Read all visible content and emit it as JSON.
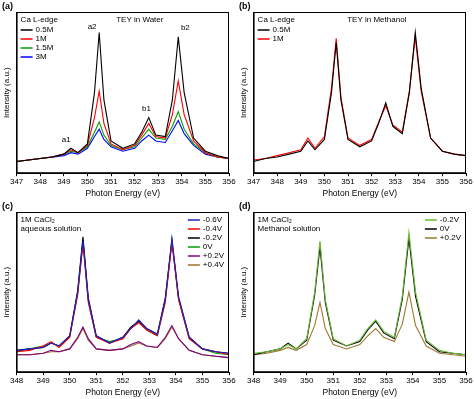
{
  "chart_data": [
    {
      "type": "line",
      "panel": "(a)",
      "title": "TEY in Water",
      "subtitle": "Ca L-edge",
      "x_label": "Photon Energy (eV)",
      "y_label": "Intensity (a.u.)",
      "x": [
        347,
        347.5,
        348,
        348.5,
        349,
        349.3,
        349.6,
        350,
        350.3,
        350.5,
        350.7,
        351,
        351.5,
        352,
        352.3,
        352.6,
        352.9,
        353.3,
        353.6,
        353.85,
        354.1,
        354.5,
        355,
        355.5,
        356
      ],
      "series": [
        {
          "name": "0.5M",
          "color": "#000000",
          "values": [
            0.8,
            0.9,
            1.0,
            1.1,
            1.3,
            1.7,
            1.4,
            2.0,
            5.5,
            9.6,
            5.0,
            2.2,
            1.7,
            2.0,
            2.8,
            3.8,
            2.6,
            2.5,
            5.0,
            9.3,
            5.5,
            2.4,
            1.5,
            1.2,
            1.0
          ]
        },
        {
          "name": "1M",
          "color": "#ff0000",
          "values": [
            0.8,
            0.9,
            1.0,
            1.1,
            1.3,
            1.6,
            1.4,
            1.9,
            3.8,
            5.6,
            3.4,
            2.0,
            1.6,
            1.9,
            2.6,
            3.4,
            2.5,
            2.4,
            4.0,
            6.3,
            4.0,
            2.2,
            1.4,
            1.1,
            1.0
          ]
        },
        {
          "name": "1.5M",
          "color": "#00a000",
          "values": [
            0.8,
            0.9,
            1.0,
            1.1,
            1.3,
            1.5,
            1.4,
            1.8,
            2.8,
            3.5,
            2.6,
            1.9,
            1.6,
            1.8,
            2.4,
            3.0,
            2.4,
            2.3,
            3.2,
            4.2,
            3.0,
            2.0,
            1.4,
            1.1,
            1.0
          ]
        },
        {
          "name": "3M",
          "color": "#0000ff",
          "values": [
            0.8,
            0.9,
            1.0,
            1.1,
            1.2,
            1.4,
            1.3,
            1.7,
            2.5,
            3.0,
            2.3,
            1.8,
            1.5,
            1.7,
            2.2,
            2.6,
            2.2,
            2.1,
            2.9,
            3.6,
            2.7,
            1.9,
            1.3,
            1.1,
            1.0
          ]
        }
      ],
      "xlim": [
        347,
        356
      ],
      "xticks": [
        347,
        348,
        349,
        350,
        351,
        352,
        353,
        354,
        355,
        356
      ],
      "ylim": [
        0,
        11
      ],
      "grid": false,
      "legend": "upper left",
      "tick_labels": "x",
      "annotations": [
        {
          "text": "a1",
          "x": 349.1,
          "y": 2.3
        },
        {
          "text": "a2",
          "x": 350.2,
          "y": 10.0
        },
        {
          "text": "b1",
          "x": 352.5,
          "y": 4.4
        },
        {
          "text": "b2",
          "x": 354.15,
          "y": 9.9
        }
      ]
    },
    {
      "type": "line",
      "panel": "(b)",
      "title": "TEY in Methanol",
      "subtitle": "Ca L-edge",
      "x_label": "Photon Energy (eV)",
      "y_label": "Intensity (a.u.)",
      "x": [
        347,
        347.5,
        348,
        348.5,
        349,
        349.3,
        349.6,
        350,
        350.3,
        350.5,
        350.7,
        351,
        351.5,
        352,
        352.3,
        352.6,
        352.9,
        353.3,
        353.6,
        353.85,
        354.1,
        354.5,
        355,
        355.5,
        356
      ],
      "series": [
        {
          "name": "0.5M",
          "color": "#000000",
          "values": [
            0.8,
            1.0,
            1.1,
            1.3,
            1.5,
            2.2,
            1.6,
            2.3,
            5.5,
            8.9,
            5.0,
            2.3,
            1.8,
            2.2,
            3.4,
            4.8,
            3.2,
            2.7,
            5.5,
            9.6,
            5.8,
            2.4,
            1.5,
            1.3,
            1.2
          ]
        },
        {
          "name": "1M",
          "color": "#ff0000",
          "values": [
            0.9,
            1.0,
            1.2,
            1.4,
            1.6,
            2.4,
            1.7,
            2.5,
            5.8,
            9.2,
            5.2,
            2.4,
            1.9,
            2.3,
            3.5,
            4.6,
            3.3,
            2.8,
            5.6,
            9.3,
            5.6,
            2.4,
            1.5,
            1.3,
            1.2
          ]
        }
      ],
      "xlim": [
        347,
        356
      ],
      "xticks": [
        347,
        348,
        349,
        350,
        351,
        352,
        353,
        354,
        355,
        356
      ],
      "ylim": [
        0,
        11
      ],
      "grid": false,
      "legend": "upper left",
      "tick_labels": "x"
    },
    {
      "type": "line",
      "panel": "(c)",
      "title": [
        "1M CaCl₂",
        "aqueous solution"
      ],
      "x_label": "Photon Energy (eV)",
      "y_label": "Intensity (a.u.)",
      "x": [
        348,
        348.5,
        349,
        349.3,
        349.6,
        350,
        350.3,
        350.5,
        350.7,
        351,
        351.5,
        352,
        352.3,
        352.6,
        352.9,
        353.3,
        353.6,
        353.85,
        354.1,
        354.5,
        355,
        355.5,
        356
      ],
      "series": [
        {
          "name": "-0.6V",
          "color": "#2020c8",
          "values": [
            1.5,
            1.6,
            1.7,
            2.0,
            1.8,
            2.5,
            5.5,
            9.0,
            5.0,
            2.5,
            2.0,
            2.4,
            3.0,
            3.6,
            3.0,
            2.6,
            5.0,
            9.2,
            5.2,
            2.4,
            1.6,
            1.4,
            1.3
          ]
        },
        {
          "name": "-0.4V",
          "color": "#ff0000",
          "values": [
            1.4,
            1.5,
            1.8,
            2.1,
            1.7,
            2.4,
            5.3,
            8.8,
            4.8,
            2.4,
            2.0,
            2.3,
            3.0,
            3.4,
            2.9,
            2.5,
            4.8,
            8.9,
            5.0,
            2.3,
            1.6,
            1.4,
            1.2
          ]
        },
        {
          "name": "-0.2V",
          "color": "#000000",
          "values": [
            1.5,
            1.6,
            1.7,
            2.0,
            1.8,
            2.5,
            5.6,
            9.3,
            5.1,
            2.5,
            2.0,
            2.4,
            3.1,
            3.5,
            3.0,
            2.6,
            5.1,
            9.0,
            5.1,
            2.4,
            1.6,
            1.4,
            1.3
          ]
        },
        {
          "name": "0V",
          "color": "#00a000",
          "values": [
            1.4,
            1.6,
            1.8,
            2.0,
            1.8,
            2.4,
            5.4,
            9.1,
            4.9,
            2.4,
            2.1,
            2.3,
            3.0,
            3.5,
            2.9,
            2.5,
            4.9,
            9.1,
            5.0,
            2.3,
            1.6,
            1.3,
            1.2
          ]
        },
        {
          "name": "+0.2V",
          "color": "#800080",
          "values": [
            1.2,
            1.2,
            1.3,
            1.5,
            1.4,
            1.6,
            2.4,
            3.1,
            2.3,
            1.6,
            1.5,
            1.6,
            1.9,
            2.1,
            1.8,
            1.7,
            2.4,
            3.2,
            2.3,
            1.5,
            1.2,
            1.1,
            1.0
          ]
        },
        {
          "name": "+0.4V",
          "color": "#a0702a",
          "values": [
            1.2,
            1.2,
            1.3,
            1.4,
            1.4,
            1.6,
            2.3,
            3.0,
            2.2,
            1.6,
            1.5,
            1.6,
            1.8,
            2.0,
            1.8,
            1.7,
            2.3,
            3.1,
            2.3,
            1.5,
            1.2,
            1.1,
            1.0
          ]
        }
      ],
      "xlim": [
        348,
        356
      ],
      "xticks": [
        348,
        349,
        350,
        351,
        352,
        353,
        354,
        355,
        356
      ],
      "ylim": [
        0,
        11
      ],
      "grid": false,
      "legend": "upper right",
      "tick_labels": "x"
    },
    {
      "type": "line",
      "panel": "(d)",
      "title": [
        "1M CaCl₂",
        "Methanol solution"
      ],
      "x_label": "Photon Energy (eV)",
      "y_label": "Intensity (a.u.)",
      "x": [
        348,
        348.5,
        349,
        349.3,
        349.6,
        350,
        350.3,
        350.5,
        350.7,
        351,
        351.5,
        352,
        352.3,
        352.6,
        352.9,
        353.3,
        353.6,
        353.85,
        354.1,
        354.5,
        355,
        355.5,
        356
      ],
      "series": [
        {
          "name": "-0.2V",
          "color": "#66bb33",
          "values": [
            1.3,
            1.4,
            1.6,
            1.9,
            1.6,
            2.3,
            5.5,
            9.0,
            5.0,
            2.3,
            1.8,
            2.2,
            3.0,
            3.6,
            2.8,
            2.4,
            5.2,
            9.6,
            5.5,
            2.2,
            1.5,
            1.3,
            1.2
          ]
        },
        {
          "name": "0V",
          "color": "#000000",
          "values": [
            1.2,
            1.4,
            1.6,
            2.0,
            1.6,
            2.2,
            5.3,
            8.6,
            4.8,
            2.2,
            1.8,
            2.1,
            2.9,
            3.5,
            2.7,
            2.3,
            5.0,
            9.2,
            5.2,
            2.1,
            1.4,
            1.3,
            1.2
          ]
        },
        {
          "name": "+0.2V",
          "color": "#a07830",
          "values": [
            1.2,
            1.3,
            1.5,
            1.7,
            1.5,
            1.9,
            3.2,
            4.8,
            3.0,
            1.9,
            1.6,
            1.9,
            2.5,
            3.0,
            2.4,
            2.1,
            3.3,
            5.5,
            3.2,
            1.8,
            1.3,
            1.2,
            1.1
          ]
        }
      ],
      "xlim": [
        348,
        356
      ],
      "xticks": [
        348,
        349,
        350,
        351,
        352,
        353,
        354,
        355,
        356
      ],
      "ylim": [
        0,
        11
      ],
      "grid": false,
      "legend": "upper right",
      "tick_labels": "x"
    }
  ]
}
